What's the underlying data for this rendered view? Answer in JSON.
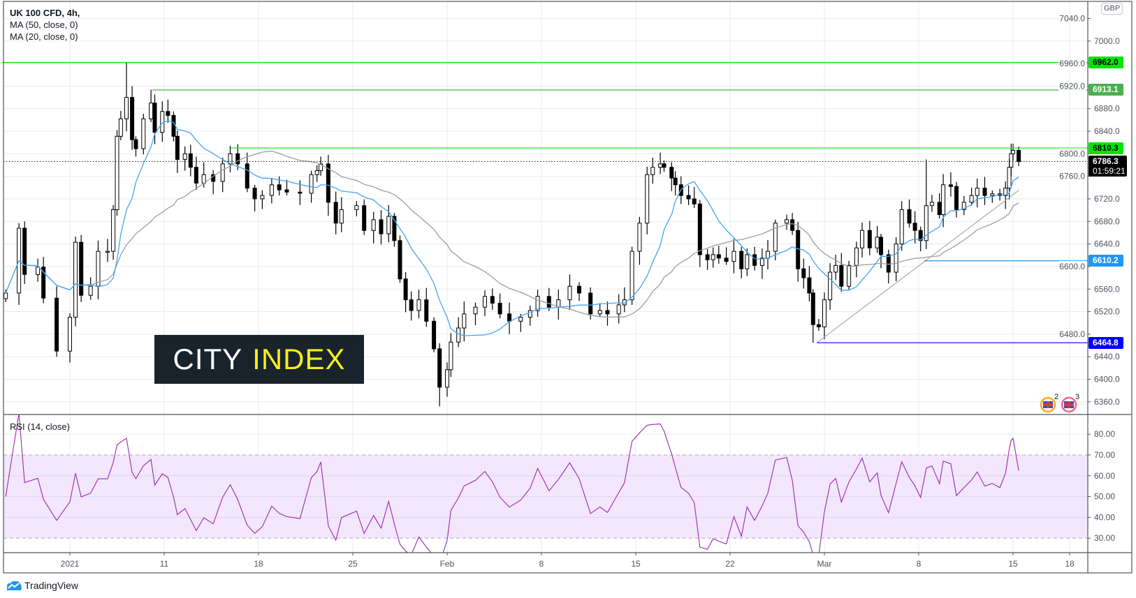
{
  "header": {
    "symbol": "UK 100 CFD, 4h,",
    "ma1": "MA (50, close, 0)",
    "ma2": "MA (20, close, 0)",
    "currency": "GBP"
  },
  "rsi": {
    "title": "RSI (14, close)"
  },
  "logo": {
    "word1": "CITY",
    "word2": "INDEX"
  },
  "footer": {
    "brand": "TradingView"
  },
  "events": [
    {
      "label": "2"
    },
    {
      "label": "3"
    }
  ],
  "colors": {
    "ma20": "#42a5f5",
    "ma50": "#9e9e9e",
    "rsi": "#9c27b0",
    "rsi_band": "#f3e7fd",
    "up_fill": "#ffffff",
    "candle": "#000000"
  },
  "chart_data": {
    "type": "candlestick",
    "title": "UK 100 CFD, 4h",
    "time_unit": "trading days since 2021-01-04",
    "ylim": [
      6330,
      7060
    ],
    "yticks": [
      7040,
      7000,
      6960,
      6920,
      6880,
      6840,
      6800,
      6760,
      6720,
      6680,
      6640,
      6600,
      6560,
      6520,
      6480,
      6440,
      6400,
      6360
    ],
    "xticks": [
      {
        "t": 0,
        "label": "2021"
      },
      {
        "t": 5,
        "label": "11"
      },
      {
        "t": 10,
        "label": "18"
      },
      {
        "t": 15,
        "label": "25"
      },
      {
        "t": 20,
        "label": "Feb"
      },
      {
        "t": 25,
        "label": "8"
      },
      {
        "t": 30,
        "label": "15"
      },
      {
        "t": 35,
        "label": "22"
      },
      {
        "t": 40,
        "label": "Mar"
      },
      {
        "t": 45,
        "label": "8"
      },
      {
        "t": 50,
        "label": "15"
      },
      {
        "t": 53,
        "label": "18"
      }
    ],
    "candles_t_close": [
      [
        -3.4,
        6553
      ],
      [
        -2.7,
        6668
      ],
      [
        -2.4,
        6586
      ],
      [
        -1.7,
        6599
      ],
      [
        -1.4,
        6544
      ],
      [
        -0.7,
        6450
      ],
      [
        0,
        6510
      ],
      [
        0.3,
        6643
      ],
      [
        0.6,
        6549
      ],
      [
        1.1,
        6565
      ],
      [
        1.5,
        6627
      ],
      [
        2.0,
        6627
      ],
      [
        2.3,
        6701
      ],
      [
        2.5,
        6831
      ],
      [
        2.7,
        6862
      ],
      [
        3.0,
        6900
      ],
      [
        3.3,
        6825
      ],
      [
        3.5,
        6809
      ],
      [
        3.9,
        6862
      ],
      [
        4.3,
        6890
      ],
      [
        4.5,
        6838
      ],
      [
        4.9,
        6875
      ],
      [
        5.2,
        6868
      ],
      [
        5.5,
        6831
      ],
      [
        5.7,
        6790
      ],
      [
        6.1,
        6800
      ],
      [
        6.4,
        6776
      ],
      [
        6.7,
        6748
      ],
      [
        7.1,
        6763
      ],
      [
        7.6,
        6751
      ],
      [
        8.1,
        6782
      ],
      [
        8.5,
        6800
      ],
      [
        8.9,
        6782
      ],
      [
        9.4,
        6739
      ],
      [
        9.8,
        6720
      ],
      [
        10.2,
        6726
      ],
      [
        10.7,
        6745
      ],
      [
        11.1,
        6736
      ],
      [
        11.5,
        6732
      ],
      [
        12.2,
        6730
      ],
      [
        12.8,
        6763
      ],
      [
        13.1,
        6770
      ],
      [
        13.3,
        6782
      ],
      [
        13.7,
        6714
      ],
      [
        14.1,
        6677
      ],
      [
        14.4,
        6701
      ],
      [
        15.2,
        6708
      ],
      [
        15.6,
        6664
      ],
      [
        16.1,
        6683
      ],
      [
        16.5,
        6658
      ],
      [
        16.9,
        6689
      ],
      [
        17.2,
        6646
      ],
      [
        17.5,
        6578
      ],
      [
        17.8,
        6541
      ],
      [
        18.1,
        6522
      ],
      [
        18.5,
        6541
      ],
      [
        18.9,
        6503
      ],
      [
        19.3,
        6454
      ],
      [
        19.6,
        6386
      ],
      [
        20.0,
        6417
      ],
      [
        20.2,
        6466
      ],
      [
        20.6,
        6491
      ],
      [
        20.9,
        6516
      ],
      [
        21.5,
        6528
      ],
      [
        22.0,
        6547
      ],
      [
        22.4,
        6535
      ],
      [
        22.8,
        6516
      ],
      [
        23.3,
        6503
      ],
      [
        23.9,
        6510
      ],
      [
        24.4,
        6522
      ],
      [
        24.8,
        6547
      ],
      [
        25.4,
        6528
      ],
      [
        25.9,
        6541
      ],
      [
        26.5,
        6565
      ],
      [
        27.0,
        6553
      ],
      [
        27.6,
        6516
      ],
      [
        28.1,
        6522
      ],
      [
        28.5,
        6516
      ],
      [
        29.1,
        6532
      ],
      [
        29.4,
        6541
      ],
      [
        29.8,
        6627
      ],
      [
        30.2,
        6677
      ],
      [
        30.6,
        6763
      ],
      [
        30.9,
        6776
      ],
      [
        31.3,
        6782
      ],
      [
        31.5,
        6776
      ],
      [
        31.9,
        6757
      ],
      [
        32.1,
        6745
      ],
      [
        32.4,
        6726
      ],
      [
        32.8,
        6720
      ],
      [
        33.1,
        6711
      ],
      [
        33.4,
        6621
      ],
      [
        33.8,
        6612
      ],
      [
        34.1,
        6621
      ],
      [
        34.4,
        6615
      ],
      [
        34.8,
        6609
      ],
      [
        35.2,
        6627
      ],
      [
        35.6,
        6596
      ],
      [
        35.9,
        6621
      ],
      [
        36.3,
        6602
      ],
      [
        36.7,
        6615
      ],
      [
        37.0,
        6627
      ],
      [
        37.4,
        6677
      ],
      [
        38.0,
        6683
      ],
      [
        38.3,
        6664
      ],
      [
        38.6,
        6596
      ],
      [
        38.9,
        6580
      ],
      [
        39.2,
        6553
      ],
      [
        39.4,
        6497
      ],
      [
        39.7,
        6493
      ],
      [
        40.0,
        6541
      ],
      [
        40.3,
        6590
      ],
      [
        40.6,
        6602
      ],
      [
        40.9,
        6565
      ],
      [
        41.3,
        6602
      ],
      [
        41.7,
        6633
      ],
      [
        42.0,
        6664
      ],
      [
        42.4,
        6633
      ],
      [
        42.8,
        6652
      ],
      [
        43.0,
        6621
      ],
      [
        43.4,
        6590
      ],
      [
        43.8,
        6640
      ],
      [
        44.1,
        6701
      ],
      [
        44.5,
        6677
      ],
      [
        44.8,
        6664
      ],
      [
        45.1,
        6646
      ],
      [
        45.4,
        6708
      ],
      [
        45.7,
        6714
      ],
      [
        46.1,
        6692
      ],
      [
        46.3,
        6745
      ],
      [
        46.7,
        6742
      ],
      [
        47.0,
        6701
      ],
      [
        47.4,
        6714
      ],
      [
        47.8,
        6726
      ],
      [
        48.1,
        6739
      ],
      [
        48.5,
        6726
      ],
      [
        48.9,
        6729
      ],
      [
        49.3,
        6726
      ],
      [
        49.6,
        6739
      ],
      [
        49.8,
        6776
      ],
      [
        49.9,
        6800
      ],
      [
        50.0,
        6806
      ],
      [
        50.3,
        6786.3
      ]
    ],
    "extremes": [
      {
        "i": 15,
        "high": 6962
      },
      {
        "i": 19,
        "high": 6913.1
      },
      {
        "i": 5,
        "low": 6440
      },
      {
        "i": 58,
        "low": 6352
      },
      {
        "i": 108,
        "low": 6464.8
      },
      {
        "i": 141,
        "high": 6818
      },
      {
        "i": 126,
        "high": 6790
      }
    ],
    "levels": [
      {
        "price": 6962.0,
        "label": "6962.0",
        "color": "#00e600",
        "text": "#000000",
        "from_t": -3.6
      },
      {
        "price": 6913.1,
        "label": "6913.1",
        "color": "#4caf50",
        "text": "#ffffff",
        "from_t": 4.3
      },
      {
        "price": 6810.3,
        "label": "6810.3",
        "color": "#00e600",
        "text": "#000000",
        "from_t": 8.5
      },
      {
        "price": 6610.2,
        "label": "6610.2",
        "color": "#2196f3",
        "text": "#ffffff",
        "from_t": 45.3
      },
      {
        "price": 6464.8,
        "label": "6464.8",
        "color": "#0000ff",
        "text": "#ffffff",
        "from_t": 39.6
      }
    ],
    "last_price": {
      "value": 6786.3,
      "label": "6786.3",
      "countdown": "01:59:21"
    },
    "trendline": {
      "t1": 39.6,
      "p1": 6464.8,
      "t2": 50.3,
      "p2": 6735
    },
    "rsi_ticks": [
      80,
      70,
      60,
      50,
      40,
      30
    ],
    "rsi_tick_labels": [
      "80.00",
      "70.00",
      "60.00",
      "50.00",
      "40.00",
      "30.00"
    ],
    "rsi_band": [
      30,
      70
    ]
  }
}
